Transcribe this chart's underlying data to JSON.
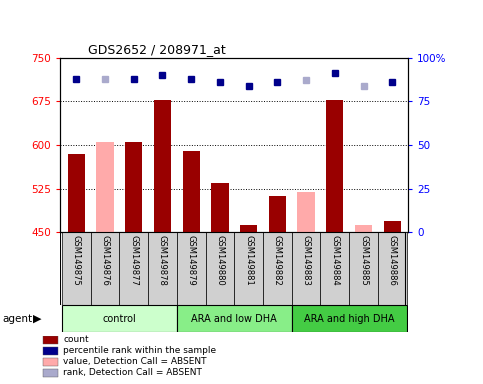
{
  "title": "GDS2652 / 208971_at",
  "samples": [
    "GSM149875",
    "GSM149876",
    "GSM149877",
    "GSM149878",
    "GSM149879",
    "GSM149880",
    "GSM149881",
    "GSM149882",
    "GSM149883",
    "GSM149884",
    "GSM149885",
    "GSM149886"
  ],
  "bar_values": [
    585,
    null,
    605,
    678,
    590,
    535,
    462,
    512,
    null,
    678,
    null,
    470
  ],
  "bar_absent_values": [
    null,
    605,
    null,
    null,
    null,
    null,
    null,
    null,
    520,
    null,
    462,
    null
  ],
  "rank_values": [
    88,
    null,
    88,
    90,
    88,
    86,
    84,
    86,
    null,
    91,
    null,
    86
  ],
  "rank_absent_values": [
    null,
    88,
    null,
    null,
    null,
    null,
    null,
    null,
    87,
    null,
    84,
    null
  ],
  "rank_color_present": "#00008B",
  "rank_color_absent": "#aaaacc",
  "bar_color_present": "#990000",
  "bar_color_absent": "#ffaaaa",
  "ymin": 450,
  "ymax": 750,
  "yticks": [
    450,
    525,
    600,
    675,
    750
  ],
  "y2min": 0,
  "y2max": 100,
  "y2ticks": [
    0,
    25,
    50,
    75,
    100
  ],
  "y2ticklabels": [
    "0",
    "25",
    "50",
    "75",
    "100%"
  ],
  "group_labels": [
    "control",
    "ARA and low DHA",
    "ARA and high DHA"
  ],
  "group_ranges": [
    [
      0,
      3
    ],
    [
      4,
      7
    ],
    [
      8,
      11
    ]
  ],
  "group_colors": [
    "#ccffcc",
    "#88ee88",
    "#44cc44"
  ],
  "legend_colors": [
    "#990000",
    "#00008B",
    "#ffaaaa",
    "#aaaacc"
  ],
  "legend_labels": [
    "count",
    "percentile rank within the sample",
    "value, Detection Call = ABSENT",
    "rank, Detection Call = ABSENT"
  ],
  "background_color": "#ffffff"
}
